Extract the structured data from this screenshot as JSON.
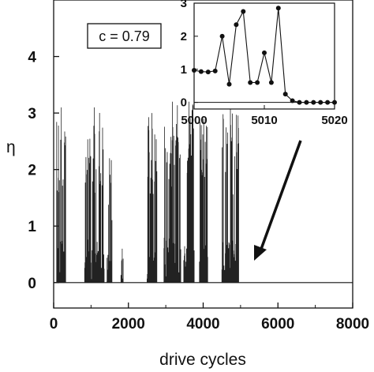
{
  "chart_data": [
    {
      "type": "line",
      "xlabel": "drive cycles",
      "ylabel": "η",
      "xlim": [
        0,
        8000
      ],
      "ylim": [
        -0.45,
        5.0
      ],
      "xticks": [
        0,
        2000,
        4000,
        6000,
        8000
      ],
      "yticks": [
        0,
        1,
        2,
        3,
        4
      ],
      "xtick_labels": [
        "0",
        "2000",
        "4000",
        "6000",
        "8000"
      ],
      "ytick_labels": [
        "0",
        "1",
        "2",
        "3",
        "4"
      ],
      "grid": false,
      "annotation": "c = 0.79",
      "bursts": [
        {
          "start": 80,
          "end": 320,
          "peak": 3.1
        },
        {
          "start": 830,
          "end": 1350,
          "peak": 3.1
        },
        {
          "start": 1420,
          "end": 1560,
          "peak": 2.2
        },
        {
          "start": 1800,
          "end": 1860,
          "peak": 0.6
        },
        {
          "start": 2500,
          "end": 2760,
          "peak": 3.0
        },
        {
          "start": 2950,
          "end": 3400,
          "peak": 3.2
        },
        {
          "start": 3480,
          "end": 3760,
          "peak": 3.2
        },
        {
          "start": 3900,
          "end": 4120,
          "peak": 2.9
        },
        {
          "start": 4500,
          "end": 4950,
          "peak": 3.1
        }
      ],
      "baseline": 0,
      "quiet_after": 5000
    },
    {
      "type": "line",
      "inset": true,
      "xlim": [
        5000,
        5020
      ],
      "ylim": [
        -0.2,
        3.0
      ],
      "xticks": [
        5000,
        5010,
        5020
      ],
      "yticks": [
        0,
        1,
        2,
        3
      ],
      "xtick_labels": [
        "5000",
        "5010",
        "5020"
      ],
      "ytick_labels": [
        "0",
        "1",
        "2",
        "3"
      ],
      "x": [
        5000,
        5001,
        5002,
        5003,
        5004,
        5005,
        5006,
        5007,
        5008,
        5009,
        5010,
        5011,
        5012,
        5013,
        5014,
        5015,
        5016,
        5017,
        5018,
        5019,
        5020
      ],
      "y": [
        0.97,
        0.93,
        0.92,
        0.95,
        2.0,
        0.55,
        2.35,
        2.75,
        0.6,
        0.6,
        1.5,
        0.6,
        2.85,
        0.25,
        0.05,
        0.0,
        0.0,
        0.0,
        0.0,
        0.0,
        0.0
      ]
    }
  ]
}
